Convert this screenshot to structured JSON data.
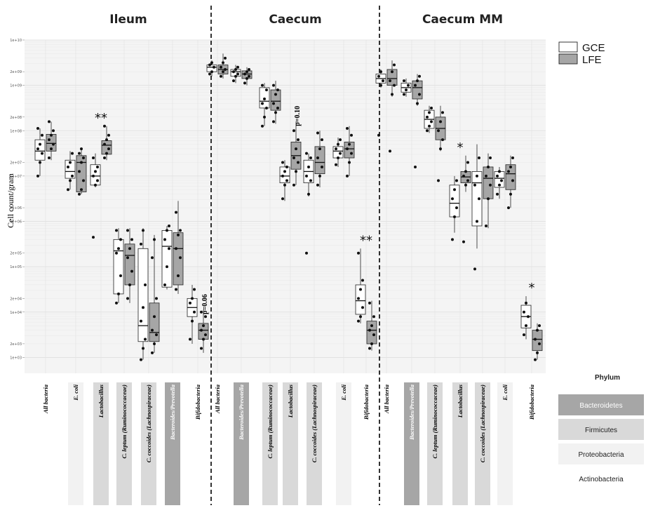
{
  "chart_data": {
    "type": "box",
    "ylabel": "Cell count/gram",
    "yscale": "log10",
    "ylim": [
      1000,
      10000000000
    ],
    "ytick_labels": [
      "1e+03",
      "2e+03",
      "1e+04",
      "2e+04",
      "1e+05",
      "2e+05",
      "1e+06",
      "2e+06",
      "1e+07",
      "2e+07",
      "1e+08",
      "2e+08",
      "1e+09",
      "2e+09",
      "1e+10"
    ],
    "groups": [
      "GCE",
      "LFE"
    ],
    "group_colors": {
      "GCE": "#ffffff",
      "LFE": "#a6a6a6"
    },
    "legend_position": "top-right",
    "phylum_legend": {
      "title": "Phylum",
      "items": [
        {
          "name": "Bacteroidetes",
          "color": "#a6a6a6",
          "text_color": "#ffffff"
        },
        {
          "name": "Firmicutes",
          "color": "#d9d9d9",
          "text_color": "#222222"
        },
        {
          "name": "Proteobacteria",
          "color": "#f2f2f2",
          "text_color": "#222222"
        },
        {
          "name": "Actinobacteria",
          "color": "#ffffff",
          "text_color": "#222222"
        }
      ]
    },
    "panels": [
      {
        "title": "Ileum",
        "categories": [
          {
            "label": "All bacteria",
            "phylum": "Actinobacteria",
            "GCE": {
              "min": 7.0,
              "q1": 7.35,
              "median": 7.55,
              "q3": 7.8,
              "max": 8.05,
              "points": [
                7.0,
                7.3,
                7.5,
                7.6,
                7.7,
                7.9,
                8.05
              ]
            },
            "LFE": {
              "min": 7.35,
              "q1": 7.55,
              "median": 7.72,
              "q3": 7.92,
              "max": 8.2,
              "points": [
                7.4,
                7.6,
                7.7,
                7.8,
                7.9,
                8.0,
                8.2
              ]
            }
          },
          {
            "label": "E. coli",
            "phylum": "Proteobacteria",
            "GCE": {
              "min": 6.7,
              "q1": 6.95,
              "median": 7.1,
              "q3": 7.35,
              "max": 7.55,
              "points": [
                6.7,
                6.9,
                7.0,
                7.2,
                7.3,
                7.5
              ]
            },
            "LFE": {
              "min": 6.6,
              "q1": 6.65,
              "median": 7.3,
              "q3": 7.45,
              "max": 7.6,
              "points": [
                6.6,
                6.7,
                6.9,
                7.1,
                7.3,
                7.4,
                7.5,
                7.6
              ]
            }
          },
          {
            "label": "Lactobacillus",
            "phylum": "Firmicutes",
            "annotation": "**",
            "GCE": {
              "min": 6.75,
              "q1": 6.8,
              "median": 7.0,
              "q3": 7.25,
              "max": 7.5,
              "points": [
                5.65,
                6.8,
                6.9,
                7.0,
                7.1,
                7.2,
                7.4
              ]
            },
            "LFE": {
              "min": 7.35,
              "q1": 7.48,
              "median": 7.68,
              "q3": 7.78,
              "max": 8.1,
              "points": [
                7.4,
                7.5,
                7.6,
                7.7,
                7.8,
                7.9,
                8.1
              ]
            }
          },
          {
            "label": "C. leptum (Ruminococcaceae)",
            "phylum": "Firmicutes",
            "GCE": {
              "min": 4.2,
              "q1": 4.4,
              "median": 5.35,
              "q3": 5.6,
              "max": 5.85,
              "points": [
                4.2,
                4.4,
                4.8,
                5.3,
                5.4,
                5.6,
                5.8
              ]
            },
            "LFE": {
              "min": 4.2,
              "q1": 4.6,
              "median": 5.25,
              "q3": 5.5,
              "max": 5.85,
              "points": [
                4.3,
                4.6,
                4.9,
                5.2,
                5.4,
                5.6,
                5.8
              ]
            }
          },
          {
            "label": "C. coccoides (Lachnospiraceae)",
            "phylum": "Firmicutes",
            "GCE": {
              "min": 2.95,
              "q1": 3.35,
              "median": 3.7,
              "q3": 5.4,
              "max": 5.85,
              "points": [
                2.95,
                3.2,
                3.4,
                3.8,
                4.1,
                4.6,
                5.5,
                5.8
              ]
            },
            "LFE": {
              "min": 3.1,
              "q1": 3.35,
              "median": 3.55,
              "q3": 4.2,
              "max": 5.7,
              "points": [
                3.1,
                3.3,
                3.5,
                3.6,
                3.9,
                4.3,
                5.2,
                5.6
              ]
            }
          },
          {
            "label": "Bacteroides/Prevotella",
            "phylum": "Bacteroidetes",
            "GCE": {
              "min": 4.5,
              "q1": 4.55,
              "median": 5.45,
              "q3": 5.8,
              "max": 5.9,
              "points": [
                4.6,
                5.0,
                5.4,
                5.6,
                5.8,
                5.9
              ]
            },
            "LFE": {
              "min": 4.4,
              "q1": 4.6,
              "median": 5.4,
              "q3": 5.75,
              "max": 6.45,
              "points": [
                4.5,
                4.8,
                5.2,
                5.4,
                5.7,
                5.8,
                6.2
              ]
            }
          },
          {
            "label": "Bifidobacteria",
            "phylum": "Actinobacteria",
            "annotation": "p=0.06",
            "GCE": {
              "min": 3.3,
              "q1": 3.9,
              "median": 4.1,
              "q3": 4.3,
              "max": 4.6,
              "points": [
                3.4,
                3.8,
                4.0,
                4.2,
                4.3,
                4.5
              ]
            },
            "LFE": {
              "min": 3.1,
              "q1": 3.4,
              "median": 3.6,
              "q3": 3.75,
              "max": 4.05,
              "points": [
                3.2,
                3.4,
                3.5,
                3.6,
                3.7,
                3.9,
                4.0
              ]
            }
          }
        ]
      },
      {
        "title": "Caecum",
        "categories": [
          {
            "label": "All bacteria",
            "phylum": "Actinobacteria",
            "GCE": {
              "min": 9.2,
              "q1": 9.3,
              "median": 9.4,
              "q3": 9.45,
              "max": 9.55,
              "points": [
                9.25,
                9.3,
                9.4,
                9.45,
                9.5
              ]
            },
            "LFE": {
              "min": 9.15,
              "q1": 9.25,
              "median": 9.35,
              "q3": 9.45,
              "max": 9.7,
              "points": [
                9.2,
                9.3,
                9.35,
                9.4,
                9.5,
                9.6
              ]
            }
          },
          {
            "label": "Bacteroides/Prevotella",
            "phylum": "Bacteroidetes",
            "GCE": {
              "min": 9.05,
              "q1": 9.2,
              "median": 9.3,
              "q3": 9.35,
              "max": 9.45,
              "points": [
                9.1,
                9.2,
                9.25,
                9.3,
                9.35,
                9.4
              ]
            },
            "LFE": {
              "min": 9.0,
              "q1": 9.15,
              "median": 9.25,
              "q3": 9.32,
              "max": 9.4,
              "points": [
                9.05,
                9.15,
                9.2,
                9.25,
                9.3,
                9.35
              ]
            }
          },
          {
            "label": "C. leptum (Ruminococcaceae)",
            "phylum": "Firmicutes",
            "GCE": {
              "min": 8.1,
              "q1": 8.5,
              "median": 8.65,
              "q3": 8.95,
              "max": 9.05,
              "points": [
                8.1,
                8.3,
                8.5,
                8.6,
                8.7,
                8.9,
                9.0
              ]
            },
            "LFE": {
              "min": 8.15,
              "q1": 8.45,
              "median": 8.65,
              "q3": 8.9,
              "max": 9.1,
              "points": [
                8.2,
                8.4,
                8.5,
                8.6,
                8.8,
                8.9,
                9.0
              ]
            }
          },
          {
            "label": "Lactobacillus",
            "phylum": "Firmicutes",
            "annotation": "p=0.10",
            "GCE": {
              "min": 6.45,
              "q1": 6.85,
              "median": 7.0,
              "q3": 7.2,
              "max": 7.35,
              "points": [
                6.5,
                6.8,
                6.9,
                7.0,
                7.1,
                7.2,
                7.3
              ]
            },
            "LFE": {
              "min": 6.8,
              "q1": 7.15,
              "median": 7.45,
              "q3": 7.75,
              "max": 8.2,
              "points": [
                6.8,
                7.1,
                7.3,
                7.4,
                7.6,
                7.8,
                8.0
              ]
            }
          },
          {
            "label": "C. coccoides (Lachnospiraceae)",
            "phylum": "Firmicutes",
            "GCE": {
              "min": 6.55,
              "q1": 6.85,
              "median": 7.1,
              "q3": 7.35,
              "max": 7.5,
              "points": [
                5.3,
                6.6,
                6.9,
                7.0,
                7.2,
                7.4,
                7.5
              ]
            },
            "LFE": {
              "min": 6.75,
              "q1": 7.05,
              "median": 7.3,
              "q3": 7.65,
              "max": 8.0,
              "points": [
                6.8,
                7.0,
                7.2,
                7.4,
                7.6,
                7.8,
                7.95
              ]
            }
          },
          {
            "label": "E. coli",
            "phylum": "Proteobacteria",
            "GCE": {
              "min": 7.2,
              "q1": 7.4,
              "median": 7.55,
              "q3": 7.65,
              "max": 7.85,
              "points": [
                7.25,
                7.4,
                7.5,
                7.6,
                7.7,
                7.8
              ]
            },
            "LFE": {
              "min": 7.0,
              "q1": 7.4,
              "median": 7.6,
              "q3": 7.75,
              "max": 8.1,
              "points": [
                7.0,
                7.3,
                7.5,
                7.6,
                7.7,
                7.9,
                8.05
              ]
            }
          },
          {
            "label": "Bifidobacteria",
            "phylum": "Actinobacteria",
            "annotation": "**",
            "GCE": {
              "min": 3.75,
              "q1": 3.95,
              "median": 4.25,
              "q3": 4.6,
              "max": 5.4,
              "points": [
                3.8,
                3.9,
                4.1,
                4.3,
                4.5,
                4.7,
                5.3
              ]
            },
            "LFE": {
              "min": 3.15,
              "q1": 3.3,
              "median": 3.6,
              "q3": 3.8,
              "max": 4.25,
              "points": [
                3.2,
                3.3,
                3.5,
                3.6,
                3.7,
                3.9,
                4.2
              ]
            }
          }
        ]
      },
      {
        "title": "Caecum MM",
        "categories": [
          {
            "label": "All bacteria",
            "phylum": "Actinobacteria",
            "GCE": {
              "min": 8.95,
              "q1": 9.05,
              "median": 9.15,
              "q3": 9.25,
              "max": 9.35,
              "points": [
                7.9,
                9.0,
                9.1,
                9.2,
                9.3
              ]
            },
            "LFE": {
              "min": 8.75,
              "q1": 9.0,
              "median": 9.15,
              "q3": 9.35,
              "max": 9.55,
              "points": [
                7.55,
                8.8,
                9.0,
                9.1,
                9.3,
                9.45
              ]
            }
          },
          {
            "label": "Bacteroides/Prevotella",
            "phylum": "Bacteroidetes",
            "GCE": {
              "min": 8.75,
              "q1": 8.85,
              "median": 8.95,
              "q3": 9.05,
              "max": 9.15,
              "points": [
                8.8,
                8.9,
                9.0,
                9.1
              ]
            },
            "LFE": {
              "min": 8.55,
              "q1": 8.7,
              "median": 8.95,
              "q3": 9.1,
              "max": 9.25,
              "points": [
                7.2,
                8.6,
                8.8,
                9.0,
                9.1,
                9.2
              ]
            }
          },
          {
            "label": "C. leptum (Ruminococcaceae)",
            "phylum": "Firmicutes",
            "GCE": {
              "min": 7.95,
              "q1": 8.05,
              "median": 8.25,
              "q3": 8.45,
              "max": 8.55,
              "points": [
                8.0,
                8.1,
                8.2,
                8.3,
                8.4,
                8.5
              ]
            },
            "LFE": {
              "min": 7.55,
              "q1": 7.8,
              "median": 8.05,
              "q3": 8.3,
              "max": 8.55,
              "points": [
                6.9,
                7.6,
                7.8,
                8.0,
                8.2,
                8.4
              ]
            }
          },
          {
            "label": "Lactobacillus",
            "phylum": "Firmicutes",
            "annotation": "*",
            "GCE": {
              "min": 5.75,
              "q1": 6.1,
              "median": 6.4,
              "q3": 6.8,
              "max": 7.0,
              "points": [
                5.6,
                6.1,
                6.3,
                6.5,
                6.7,
                6.9
              ]
            },
            "LFE": {
              "min": 6.65,
              "q1": 6.85,
              "median": 6.98,
              "q3": 7.1,
              "max": 7.45,
              "points": [
                5.55,
                6.8,
                6.9,
                7.0,
                7.1,
                7.3
              ]
            }
          },
          {
            "label": "C. coccoides (Lachnospiraceae)",
            "phylum": "Firmicutes",
            "GCE": {
              "min": 5.4,
              "q1": 5.9,
              "median": 6.85,
              "q3": 7.1,
              "max": 7.7,
              "points": [
                4.95,
                6.0,
                6.5,
                6.8,
                7.0,
                7.4
              ]
            },
            "LFE": {
              "min": 5.85,
              "q1": 6.5,
              "median": 6.95,
              "q3": 7.2,
              "max": 7.5,
              "points": [
                5.9,
                6.5,
                6.8,
                7.0,
                7.2,
                7.4
              ]
            }
          },
          {
            "label": "E. coli",
            "phylum": "Proteobacteria",
            "GCE": {
              "min": 6.5,
              "q1": 6.75,
              "median": 6.95,
              "q3": 7.1,
              "max": 7.2,
              "points": [
                6.6,
                6.8,
                6.9,
                7.0,
                7.1
              ]
            },
            "LFE": {
              "min": 6.3,
              "q1": 6.7,
              "median": 7.05,
              "q3": 7.25,
              "max": 7.45,
              "points": [
                6.3,
                6.6,
                6.9,
                7.1,
                7.2,
                7.4
              ]
            }
          },
          {
            "label": "Bifidobacteria",
            "phylum": "Actinobacteria",
            "annotation": "*",
            "GCE": {
              "min": 3.4,
              "q1": 3.65,
              "median": 3.9,
              "q3": 4.15,
              "max": 4.35,
              "points": [
                3.5,
                3.7,
                3.9,
                4.0,
                4.2
              ]
            },
            "LFE": {
              "min": 2.95,
              "q1": 3.15,
              "median": 3.4,
              "q3": 3.6,
              "max": 3.75,
              "points": [
                2.95,
                3.1,
                3.3,
                3.4,
                3.6,
                3.7
              ]
            }
          }
        ]
      }
    ]
  }
}
